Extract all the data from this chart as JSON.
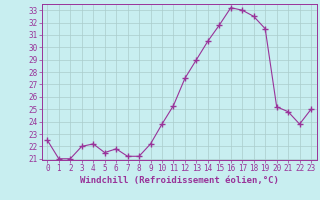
{
  "x": [
    0,
    1,
    2,
    3,
    4,
    5,
    6,
    7,
    8,
    9,
    10,
    11,
    12,
    13,
    14,
    15,
    16,
    17,
    18,
    19,
    20,
    21,
    22,
    23
  ],
  "y": [
    22.5,
    21.0,
    21.0,
    22.0,
    22.2,
    21.5,
    21.8,
    21.2,
    21.2,
    22.2,
    23.8,
    25.3,
    27.5,
    29.0,
    30.5,
    31.8,
    33.2,
    33.0,
    32.5,
    31.5,
    25.2,
    24.8,
    23.8,
    25.0
  ],
  "line_color": "#993399",
  "marker": "+",
  "marker_size": 4,
  "bg_color": "#c8eef0",
  "grid_color": "#aacccc",
  "xlabel": "Windchill (Refroidissement éolien,°C)",
  "xlabel_color": "#993399",
  "ylim_min": 21,
  "ylim_max": 33.5,
  "yticks": [
    21,
    22,
    23,
    24,
    25,
    26,
    27,
    28,
    29,
    30,
    31,
    32,
    33
  ],
  "xticks": [
    0,
    1,
    2,
    3,
    4,
    5,
    6,
    7,
    8,
    9,
    10,
    11,
    12,
    13,
    14,
    15,
    16,
    17,
    18,
    19,
    20,
    21,
    22,
    23
  ],
  "tick_color": "#993399",
  "axis_color": "#993399",
  "tick_fontsize": 5.5,
  "xlabel_fontsize": 6.5
}
